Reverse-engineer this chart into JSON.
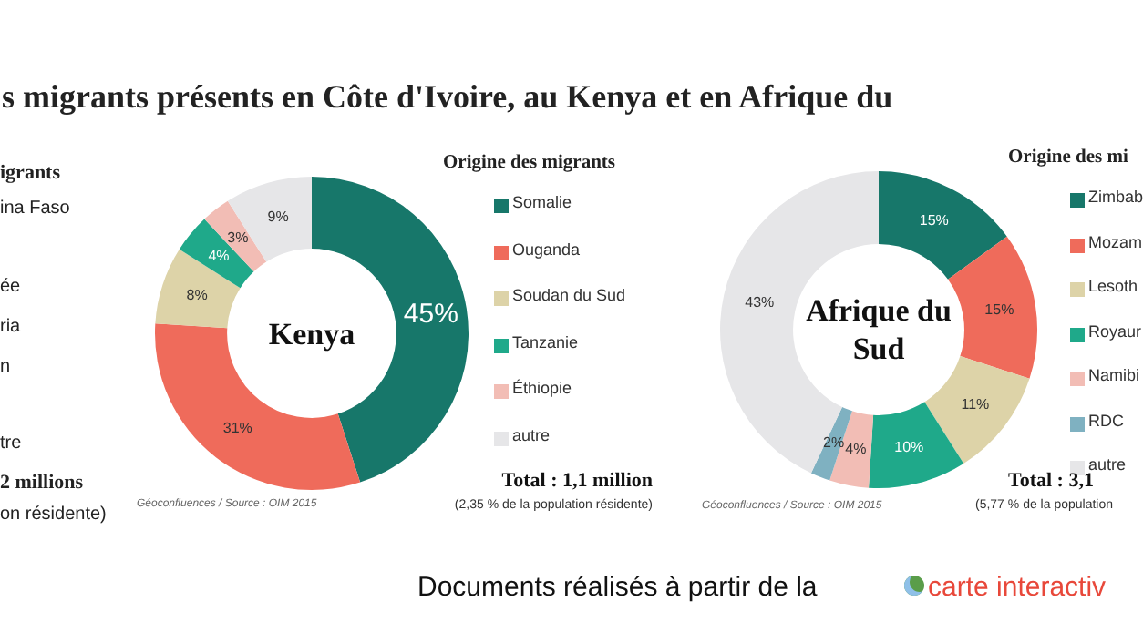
{
  "chart_data": [
    {
      "type": "other",
      "title": "s migrants présents en Côte d'Ivoire, au Kenya et en Afrique du",
      "annotations": [
        "igrants",
        "ina Faso",
        "ée",
        "ria",
        "n",
        "tre",
        "2 millions",
        "on résidente)",
        "Documents réalisés à partir de la",
        "carte interactiv"
      ]
    },
    {
      "type": "donut",
      "title": "Kenya",
      "legend_title": "Origine des migrants",
      "legend": "right",
      "categories": [
        "Somalie",
        "Ouganda",
        "Soudan du Sud",
        "Tanzanie",
        "Éthiopie",
        "autre"
      ],
      "values": [
        45,
        31,
        8,
        4,
        3,
        9
      ],
      "colors": [
        "#17776a",
        "#ef6b5b",
        "#ddd3a8",
        "#1fa98a",
        "#f2bdb5",
        "#e6e6e8"
      ],
      "value_labels": [
        "45%",
        "31%",
        "8%",
        "4%",
        "3%",
        "9%"
      ],
      "annotations": [
        "Total : 1,1 million",
        "(2,35 % de la population résidente)",
        "Géoconfluences / Source : OIM 2015"
      ]
    },
    {
      "type": "donut",
      "title": "Afrique du Sud",
      "legend_title": "Origine des mi",
      "legend": "right",
      "categories": [
        "Zimbab",
        "Mozam",
        "Lesoth",
        "Royaur",
        "Namibi",
        "RDC",
        "autre"
      ],
      "values": [
        15,
        15,
        11,
        10,
        4,
        2,
        43
      ],
      "colors": [
        "#17776a",
        "#ef6b5b",
        "#ddd3a8",
        "#1fa98a",
        "#f2bdb5",
        "#7fb1c1",
        "#e6e6e8"
      ],
      "value_labels": [
        "15%",
        "15%",
        "11%",
        "10%",
        "4%",
        "2%",
        "43%"
      ],
      "annotations": [
        "Total : 3,1",
        "(5,77 % de la population",
        "Géoconfluences / Source : OIM 2015"
      ]
    }
  ]
}
